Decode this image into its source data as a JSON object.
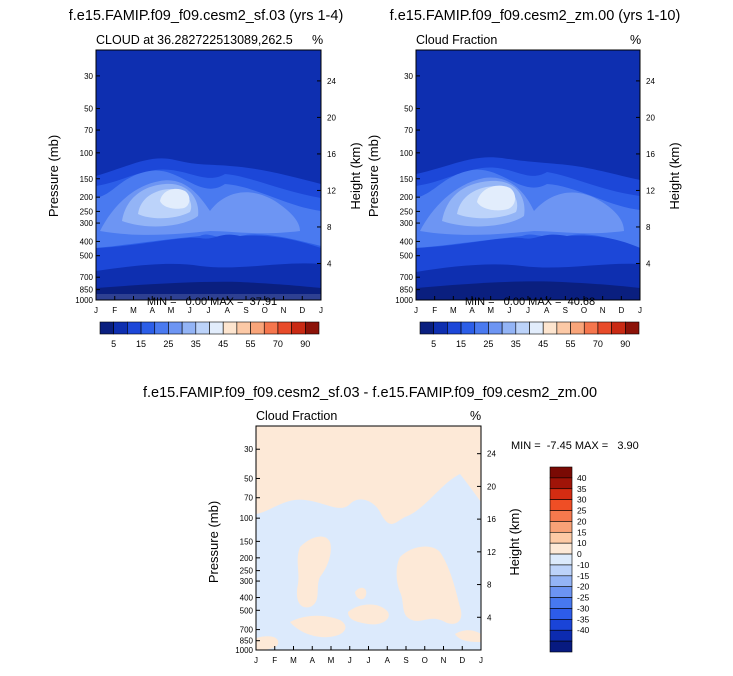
{
  "panels": [
    {
      "title": "f.e15.FAMIP.f09_f09.cesm2_sf.03 (yrs 1-4)",
      "left_label": "CLOUD at 36.282722513089,262.5",
      "right_label": "%",
      "stats": "MIN =   0.00 MAX =  37.91",
      "ylabel_left": "Pressure (mb)",
      "ylabel_right": "Height (km)"
    },
    {
      "title": "f.e15.FAMIP.f09_f09.cesm2_zm.00 (yrs 1-10)",
      "left_label": "Cloud Fraction",
      "right_label": "%",
      "stats": "MIN =   0.00 MAX =  40.68",
      "ylabel_left": "Pressure (mb)",
      "ylabel_right": "Height (km)"
    },
    {
      "title": "f.e15.FAMIP.f09_f09.cesm2_sf.03 - f.e15.FAMIP.f09_f09.cesm2_zm.00",
      "left_label": "Cloud Fraction",
      "right_label": "%",
      "stats": "MIN =  -7.45 MAX =   3.90",
      "ylabel_left": "Pressure (mb)",
      "ylabel_right": "Height (km)"
    }
  ],
  "colors": {
    "abs_scale": [
      "#0a1f7f",
      "#0e2fb0",
      "#1c47d8",
      "#2c5ee8",
      "#4a7af0",
      "#6d95f3",
      "#93b4f6",
      "#bcd3fa",
      "#e2edfc",
      "#fde5cf",
      "#fcc9a6",
      "#f9a57a",
      "#f5764d",
      "#e84b2a",
      "#c92a14",
      "#8c1208"
    ],
    "diff_scale": [
      "#071a80",
      "#0c2bb0",
      "#1a44d8",
      "#2d5cea",
      "#4778f0",
      "#6c94f3",
      "#94b4f6",
      "#bdd3fa",
      "#dceafc",
      "#fde9d7",
      "#fdcaa5",
      "#f9a277",
      "#f6794d",
      "#ef4e25",
      "#d42c12",
      "#a01408",
      "#7a0a04"
    ]
  },
  "chart_data": [
    {
      "type": "heatmap",
      "title": "f.e15.FAMIP.f09_f09.cesm2_sf.03 (yrs 1-4)",
      "subtitle": "CLOUD at 36.282722513089,262.5",
      "units": "%",
      "xlabel": "",
      "ylabel": "Pressure (mb)",
      "y2label": "Height (km)",
      "x_ticks": [
        "J",
        "F",
        "M",
        "A",
        "M",
        "J",
        "J",
        "A",
        "S",
        "O",
        "N",
        "D",
        "J"
      ],
      "y_ticks": [
        30,
        50,
        70,
        100,
        150,
        200,
        250,
        300,
        400,
        500,
        700,
        850,
        1000
      ],
      "y_scale": "log",
      "ylim": [
        1000,
        20
      ],
      "y2_ticks": [
        4,
        8,
        12,
        16,
        20,
        24
      ],
      "min": 0.0,
      "max": 37.91,
      "colorbar_labels": [
        "5",
        "15",
        "25",
        "35",
        "45",
        "55",
        "70",
        "90"
      ],
      "colorbar_orientation": "horizontal"
    },
    {
      "type": "heatmap",
      "title": "f.e15.FAMIP.f09_f09.cesm2_zm.00 (yrs 1-10)",
      "subtitle": "Cloud Fraction",
      "units": "%",
      "xlabel": "",
      "ylabel": "Pressure (mb)",
      "y2label": "Height (km)",
      "x_ticks": [
        "J",
        "F",
        "M",
        "A",
        "M",
        "J",
        "J",
        "A",
        "S",
        "O",
        "N",
        "D",
        "J"
      ],
      "y_ticks": [
        30,
        50,
        70,
        100,
        150,
        200,
        250,
        300,
        400,
        500,
        700,
        850,
        1000
      ],
      "y_scale": "log",
      "ylim": [
        1000,
        20
      ],
      "y2_ticks": [
        4,
        8,
        12,
        16,
        20,
        24
      ],
      "min": 0.0,
      "max": 40.68,
      "colorbar_labels": [
        "5",
        "15",
        "25",
        "35",
        "45",
        "55",
        "70",
        "90"
      ],
      "colorbar_orientation": "horizontal"
    },
    {
      "type": "heatmap",
      "title": "f.e15.FAMIP.f09_f09.cesm2_sf.03 - f.e15.FAMIP.f09_f09.cesm2_zm.00",
      "subtitle": "Cloud Fraction",
      "units": "%",
      "xlabel": "",
      "ylabel": "Pressure (mb)",
      "y2label": "Height (km)",
      "x_ticks": [
        "J",
        "F",
        "M",
        "A",
        "M",
        "J",
        "J",
        "A",
        "S",
        "O",
        "N",
        "D",
        "J"
      ],
      "y_ticks": [
        30,
        50,
        70,
        100,
        150,
        200,
        250,
        300,
        400,
        500,
        700,
        850,
        1000
      ],
      "y_scale": "log",
      "ylim": [
        1000,
        20
      ],
      "y2_ticks": [
        4,
        8,
        12,
        16,
        20,
        24
      ],
      "min": -7.45,
      "max": 3.9,
      "colorbar_labels": [
        "40",
        "35",
        "30",
        "25",
        "20",
        "15",
        "10",
        "0",
        "-10",
        "-15",
        "-20",
        "-25",
        "-30",
        "-35",
        "-40"
      ],
      "colorbar_orientation": "vertical"
    }
  ]
}
